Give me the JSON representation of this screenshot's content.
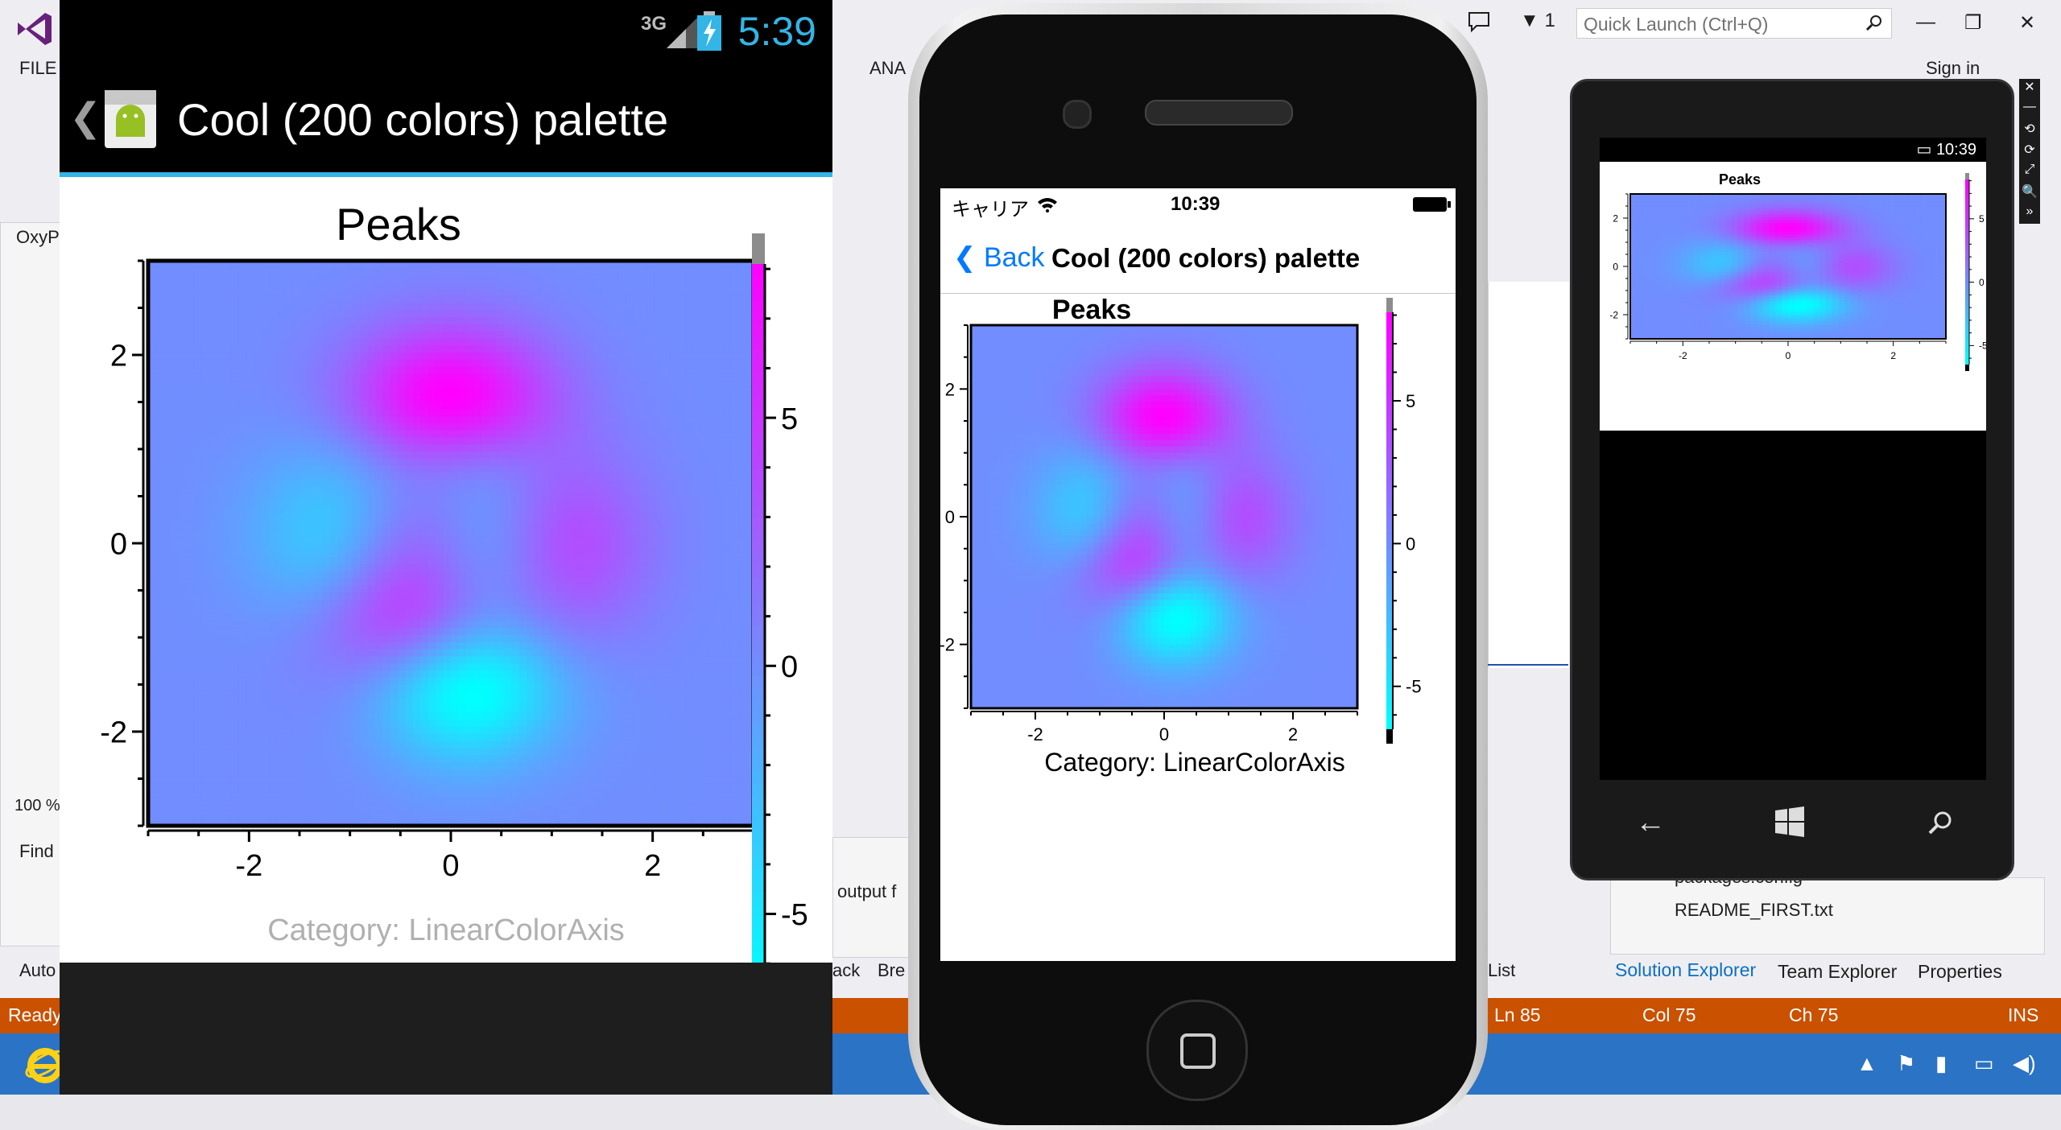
{
  "vs": {
    "menu_file": "FILE",
    "menu_ana": "ANA",
    "quick_launch_placeholder": "Quick Launch (Ctrl+Q)",
    "sign_in": "Sign in",
    "notification_count": "1",
    "left_labels": [
      "OxyP",
      "Find",
      "Auto",
      "100 %"
    ],
    "output_label": "output f",
    "ack_label": "ack",
    "bre_label": "Bre",
    "list_label": "List",
    "solution_items": [
      "packages.config",
      "README_FIRST.txt"
    ],
    "tabs": [
      "Solution Explorer",
      "Team Explorer",
      "Properties"
    ],
    "status": {
      "ready": "Ready",
      "ln": "Ln 85",
      "col": "Col 75",
      "ch": "Ch 75",
      "ins": "INS"
    },
    "brand_color": "#68217a",
    "status_color": "#ca5100",
    "taskbar_color": "#2b73c4"
  },
  "android": {
    "network": "3G",
    "clock": "5:39",
    "title": "Cool (200 colors) palette",
    "accent": "#33b5e5"
  },
  "iphone": {
    "carrier": "キャリア",
    "clock": "10:39",
    "back_label": "Back",
    "title": "Cool (200 colors) palette"
  },
  "winphone": {
    "clock": "10:39"
  },
  "chart_data": [
    {
      "type": "heatmap",
      "title": "Peaks",
      "subtitle": "Category: LinearColorAxis",
      "palette": "Cool (200 colors)",
      "palette_colors": [
        "#00ffff",
        "#ff00ff"
      ],
      "x_range": [
        -3,
        3
      ],
      "y_range": [
        -3,
        3
      ],
      "x_ticks": [
        -2,
        0,
        2
      ],
      "y_ticks": [
        2,
        0,
        -2
      ],
      "color_axis_ticks": [
        5,
        0,
        -5
      ],
      "color_range": [
        -6.5,
        8.1
      ],
      "function": "peaks"
    }
  ]
}
